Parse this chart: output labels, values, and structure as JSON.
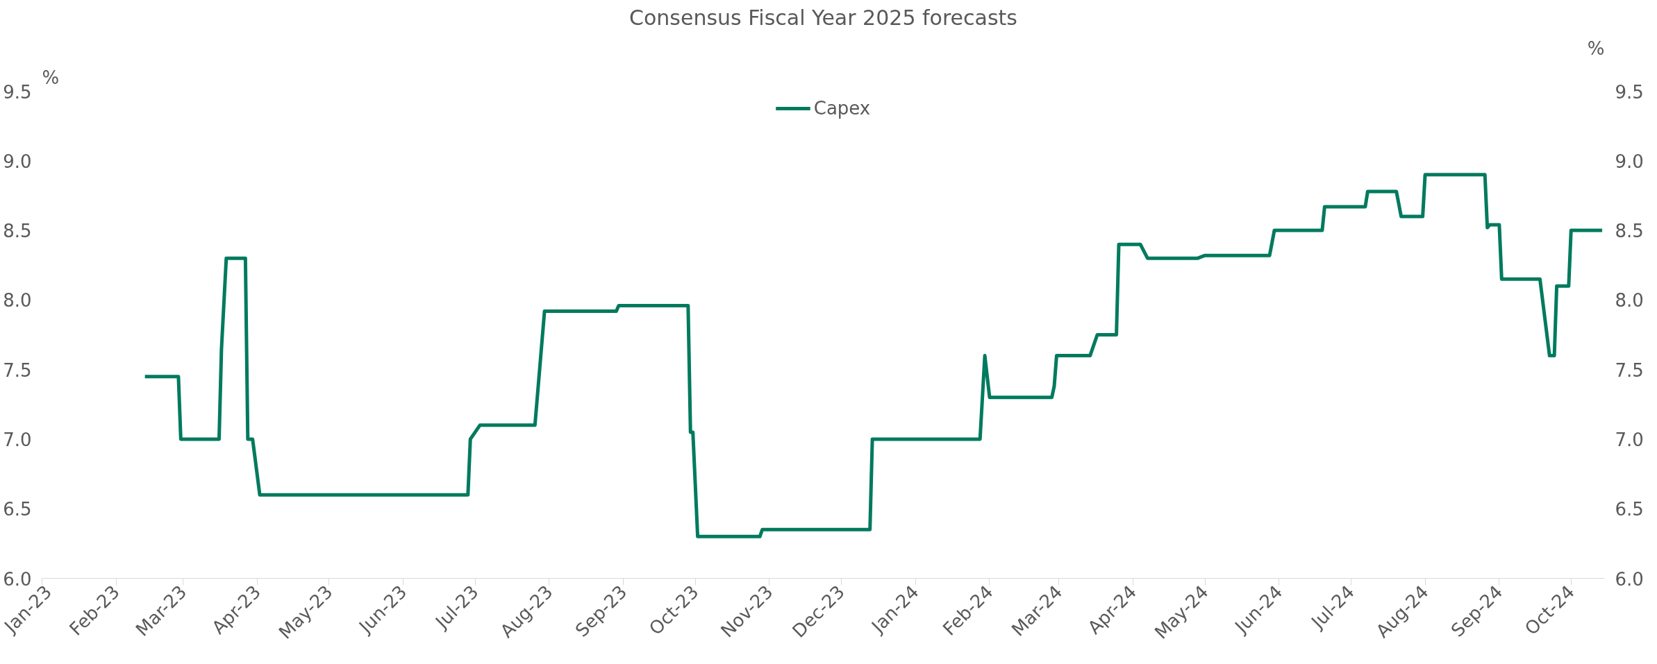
{
  "chart_data": {
    "type": "line",
    "title": "Consensus Fiscal Year 2025 forecasts",
    "ylabel": "%",
    "y2label": "%",
    "xlim": [
      "2023-01-01",
      "2024-10-15"
    ],
    "xticks": [
      {
        "value": "2023-01-01",
        "label": "Jan-23"
      },
      {
        "value": "2023-02-01",
        "label": "Feb-23"
      },
      {
        "value": "2023-03-01",
        "label": "Mar-23"
      },
      {
        "value": "2023-04-01",
        "label": "Apr-23"
      },
      {
        "value": "2023-05-01",
        "label": "May-23"
      },
      {
        "value": "2023-06-01",
        "label": "Jun-23"
      },
      {
        "value": "2023-07-01",
        "label": "Jul-23"
      },
      {
        "value": "2023-08-01",
        "label": "Aug-23"
      },
      {
        "value": "2023-09-01",
        "label": "Sep-23"
      },
      {
        "value": "2023-10-01",
        "label": "Oct-23"
      },
      {
        "value": "2023-11-01",
        "label": "Nov-23"
      },
      {
        "value": "2023-12-01",
        "label": "Dec-23"
      },
      {
        "value": "2024-01-01",
        "label": "Jan-24"
      },
      {
        "value": "2024-02-01",
        "label": "Feb-24"
      },
      {
        "value": "2024-03-01",
        "label": "Mar-24"
      },
      {
        "value": "2024-04-01",
        "label": "Apr-24"
      },
      {
        "value": "2024-05-01",
        "label": "May-24"
      },
      {
        "value": "2024-06-01",
        "label": "Jun-24"
      },
      {
        "value": "2024-07-01",
        "label": "Jul-24"
      },
      {
        "value": "2024-08-01",
        "label": "Aug-24"
      },
      {
        "value": "2024-09-01",
        "label": "Sep-24"
      },
      {
        "value": "2024-10-01",
        "label": "Oct-24"
      }
    ],
    "ylim": [
      6.0,
      9.5
    ],
    "yticks": [
      {
        "value": 6.0,
        "label": "6.0"
      },
      {
        "value": 6.5,
        "label": "6.5"
      },
      {
        "value": 7.0,
        "label": "7.0"
      },
      {
        "value": 7.5,
        "label": "7.5"
      },
      {
        "value": 8.0,
        "label": "8.0"
      },
      {
        "value": 8.5,
        "label": "8.5"
      },
      {
        "value": 9.0,
        "label": "9.0"
      },
      {
        "value": 9.5,
        "label": "9.5"
      }
    ],
    "y2lim": [
      6.0,
      9.5
    ],
    "y2ticks": [
      {
        "value": 6.0,
        "label": "6.0"
      },
      {
        "value": 6.5,
        "label": "6.5"
      },
      {
        "value": 7.0,
        "label": "7.0"
      },
      {
        "value": 7.5,
        "label": "7.5"
      },
      {
        "value": 8.0,
        "label": "8.0"
      },
      {
        "value": 8.5,
        "label": "8.5"
      },
      {
        "value": 9.0,
        "label": "9.0"
      },
      {
        "value": 9.5,
        "label": "9.5"
      }
    ],
    "grid": false,
    "legend": "top",
    "marker": "none",
    "line_style": "solid",
    "x": [
      "2023-02-13",
      "2023-02-27",
      "2023-02-28",
      "2023-03-16",
      "2023-03-17",
      "2023-03-19",
      "2023-03-27",
      "2023-03-28",
      "2023-03-30",
      "2023-04-02",
      "2023-06-28",
      "2023-06-29",
      "2023-07-01",
      "2023-07-03",
      "2023-07-26",
      "2023-07-30",
      "2023-08-29",
      "2023-08-30",
      "2023-09-28",
      "2023-09-29",
      "2023-09-30",
      "2023-10-02",
      "2023-10-28",
      "2023-10-29",
      "2023-12-13",
      "2023-12-14",
      "2024-01-28",
      "2024-01-30",
      "2024-02-01",
      "2024-02-27",
      "2024-02-28",
      "2024-02-29",
      "2024-03-14",
      "2024-03-17",
      "2024-03-25",
      "2024-03-26",
      "2024-04-04",
      "2024-04-07",
      "2024-04-28",
      "2024-05-01",
      "2024-05-28",
      "2024-05-30",
      "2024-06-19",
      "2024-06-20",
      "2024-07-07",
      "2024-07-08",
      "2024-07-20",
      "2024-07-22",
      "2024-07-31",
      "2024-08-01",
      "2024-08-26",
      "2024-08-27",
      "2024-08-28",
      "2024-09-01",
      "2024-09-02",
      "2024-09-18",
      "2024-09-22",
      "2024-09-24",
      "2024-09-25",
      "2024-09-30",
      "2024-10-01",
      "2024-10-14"
    ],
    "series": [
      {
        "name": "Capex",
        "color": "#007a5e",
        "values": [
          7.45,
          7.45,
          7.0,
          7.0,
          7.65,
          8.3,
          8.3,
          7.0,
          7.0,
          6.6,
          6.6,
          7.0,
          7.05,
          7.1,
          7.1,
          7.92,
          7.92,
          7.96,
          7.96,
          7.05,
          7.05,
          6.3,
          6.3,
          6.35,
          6.35,
          7.0,
          7.0,
          7.6,
          7.3,
          7.3,
          7.38,
          7.6,
          7.6,
          7.75,
          7.75,
          8.4,
          8.4,
          8.3,
          8.3,
          8.32,
          8.32,
          8.5,
          8.5,
          8.67,
          8.67,
          8.78,
          8.78,
          8.6,
          8.6,
          8.9,
          8.9,
          8.52,
          8.54,
          8.54,
          8.15,
          8.15,
          7.6,
          7.6,
          8.1,
          8.1,
          8.5,
          8.5
        ]
      }
    ]
  }
}
